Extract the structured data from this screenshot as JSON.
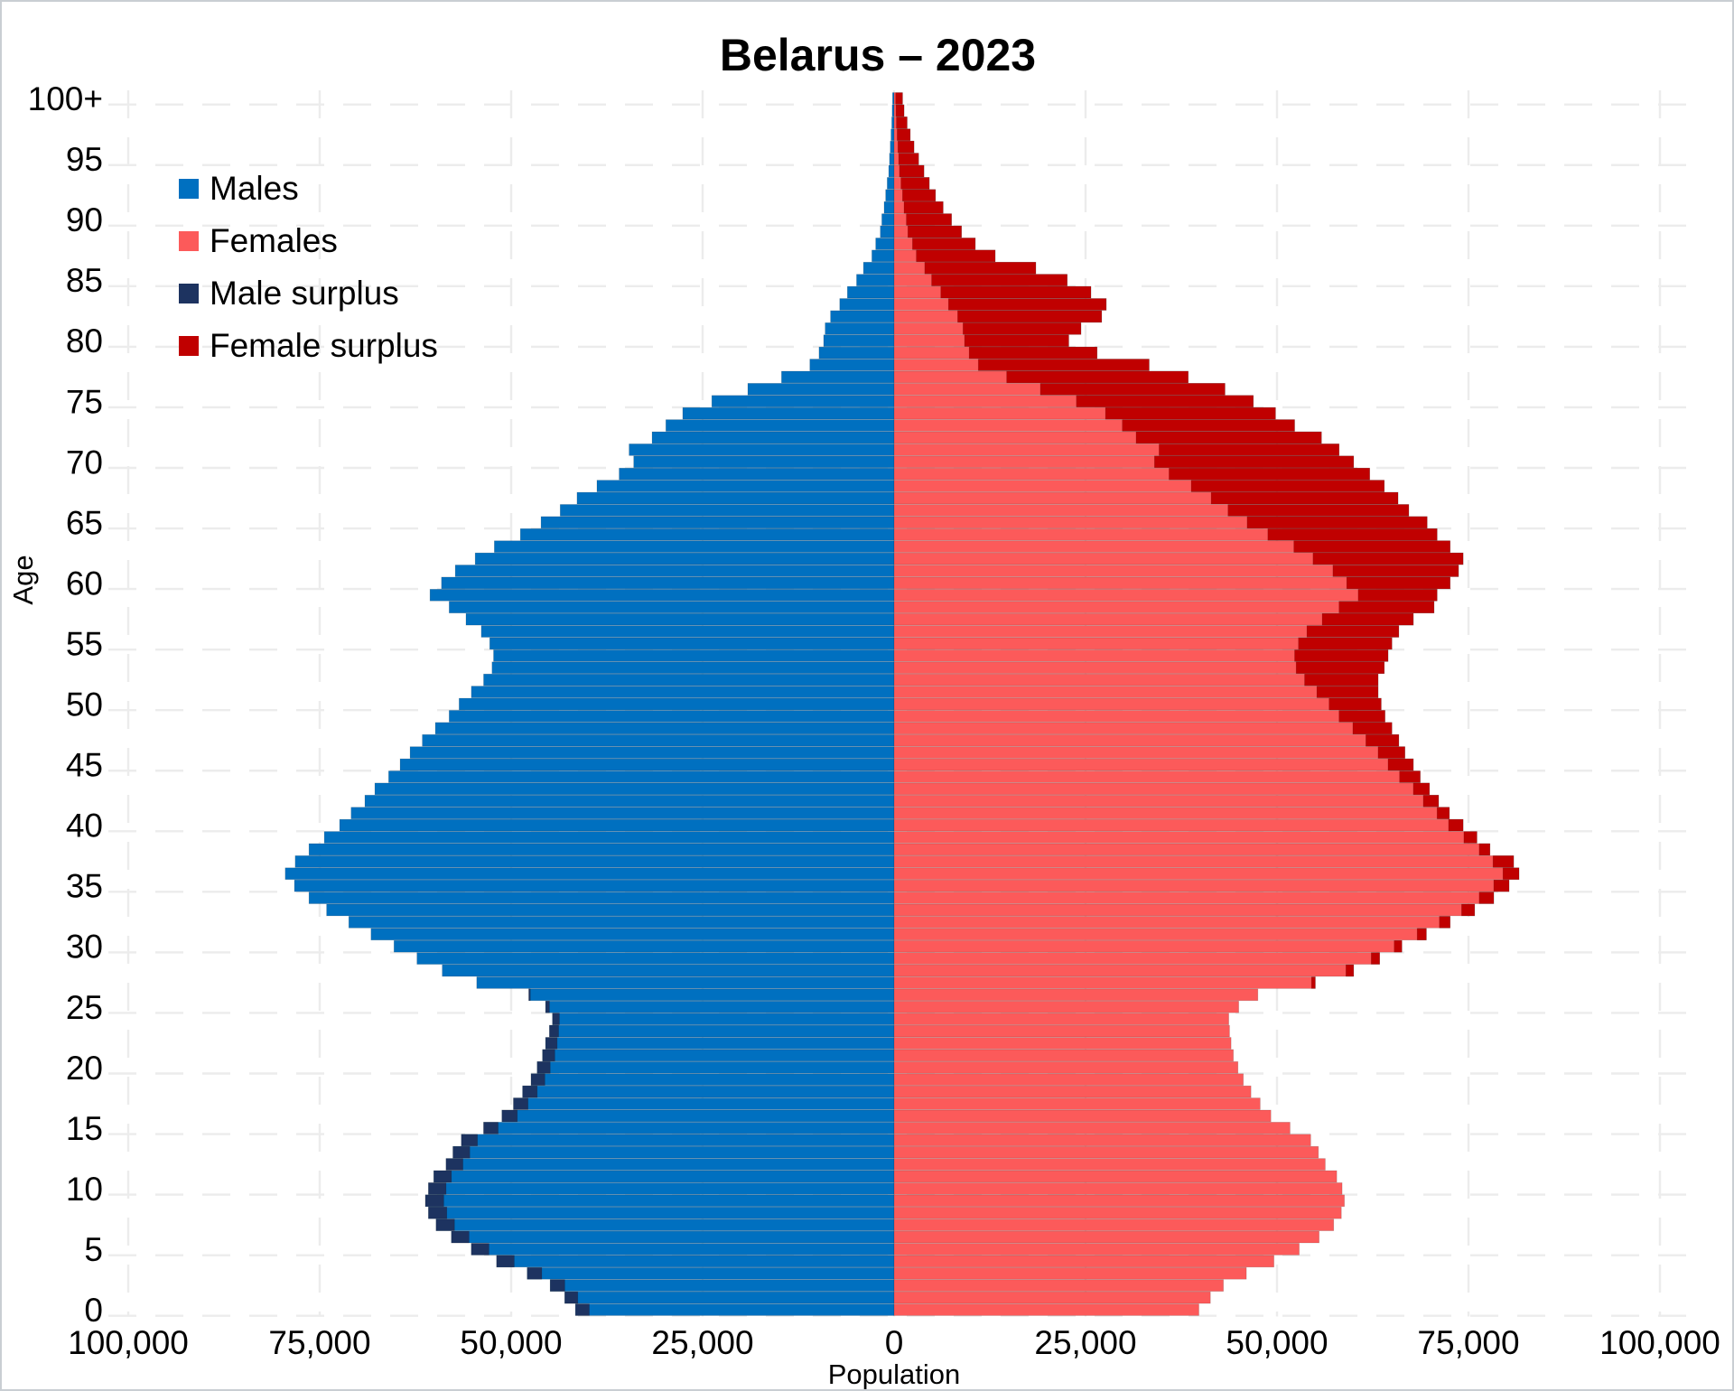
{
  "title": "Belarus – 2023",
  "legend": {
    "items": [
      {
        "label": "Males",
        "color": "#0070c0"
      },
      {
        "label": "Females",
        "color": "#fc5a5a"
      },
      {
        "label": "Male surplus",
        "color": "#1d3360"
      },
      {
        "label": "Female surplus",
        "color": "#c00000"
      }
    ]
  },
  "axes": {
    "x_label": "Population",
    "y_label": "Age",
    "x_tick_labels": [
      "100,000",
      "75,000",
      "50,000",
      "25,000",
      "0",
      "25,000",
      "50,000",
      "75,000",
      "100,000"
    ],
    "x_tick_values": [
      -100000,
      -75000,
      -50000,
      -25000,
      0,
      25000,
      50000,
      75000,
      100000
    ],
    "y_tick_labels": [
      "0",
      "5",
      "10",
      "15",
      "20",
      "25",
      "30",
      "35",
      "40",
      "45",
      "50",
      "55",
      "60",
      "65",
      "70",
      "75",
      "80",
      "85",
      "90",
      "95",
      "100+"
    ],
    "y_tick_values": [
      0,
      5,
      10,
      15,
      20,
      25,
      30,
      35,
      40,
      45,
      50,
      55,
      60,
      65,
      70,
      75,
      80,
      85,
      90,
      95,
      100
    ]
  },
  "chart_data": {
    "type": "bar",
    "subtype": "population-pyramid",
    "title": "Belarus – 2023",
    "xlabel": "Population",
    "ylabel": "Age",
    "xlim": [
      -100000,
      100000
    ],
    "age_min": 0,
    "age_max": 100,
    "grid": true,
    "legend_position": "top-left",
    "colors": {
      "males": "#0070c0",
      "females": "#fc5a5a",
      "male_surplus": "#1d3360",
      "female_surplus": "#c00000"
    },
    "series": [
      {
        "name": "Males",
        "values": [
          41600,
          43000,
          44900,
          47900,
          51900,
          55200,
          57800,
          59800,
          60800,
          61200,
          60800,
          60100,
          58500,
          57600,
          56500,
          53600,
          51200,
          49700,
          48500,
          47400,
          46600,
          45900,
          45500,
          45000,
          44600,
          45500,
          47700,
          54500,
          59000,
          62300,
          65300,
          68300,
          71200,
          74100,
          76400,
          78300,
          79500,
          78200,
          76400,
          74400,
          72400,
          70900,
          69100,
          67800,
          66000,
          64500,
          63200,
          61600,
          59900,
          58100,
          56800,
          55200,
          53600,
          52500,
          52300,
          52800,
          53900,
          55900,
          58100,
          60600,
          59100,
          57300,
          54700,
          52200,
          48800,
          46100,
          43600,
          41400,
          38800,
          35900,
          34000,
          34600,
          31600,
          29800,
          27600,
          23800,
          19100,
          14700,
          11000,
          9800,
          9200,
          9000,
          8300,
          7100,
          6100,
          4900,
          4000,
          2900,
          2400,
          1800,
          1600,
          1300,
          1100,
          900,
          700,
          600,
          500,
          400,
          300,
          250,
          200
        ]
      },
      {
        "name": "Females",
        "values": [
          39800,
          41300,
          43000,
          46000,
          49600,
          52900,
          55500,
          57400,
          58400,
          58800,
          58500,
          57800,
          56300,
          55400,
          54400,
          51700,
          49200,
          47800,
          46600,
          45600,
          44900,
          44300,
          44000,
          43800,
          43700,
          45000,
          47500,
          55000,
          60000,
          63400,
          66300,
          69500,
          72600,
          75800,
          78300,
          80300,
          81600,
          80900,
          77800,
          76100,
          74300,
          72500,
          71100,
          69900,
          68700,
          67800,
          66700,
          65900,
          65000,
          64100,
          63600,
          63200,
          63200,
          64000,
          64500,
          65000,
          65900,
          67800,
          70500,
          70900,
          72600,
          73700,
          74300,
          72600,
          70900,
          69600,
          67200,
          65800,
          64000,
          62100,
          60000,
          58100,
          55800,
          52300,
          49800,
          46900,
          43200,
          38400,
          33300,
          26500,
          22800,
          24400,
          27100,
          27700,
          25700,
          22600,
          18500,
          13200,
          10600,
          8800,
          7500,
          6400,
          5400,
          4600,
          3900,
          3200,
          2600,
          2100,
          1700,
          1300,
          1100
        ]
      }
    ]
  }
}
